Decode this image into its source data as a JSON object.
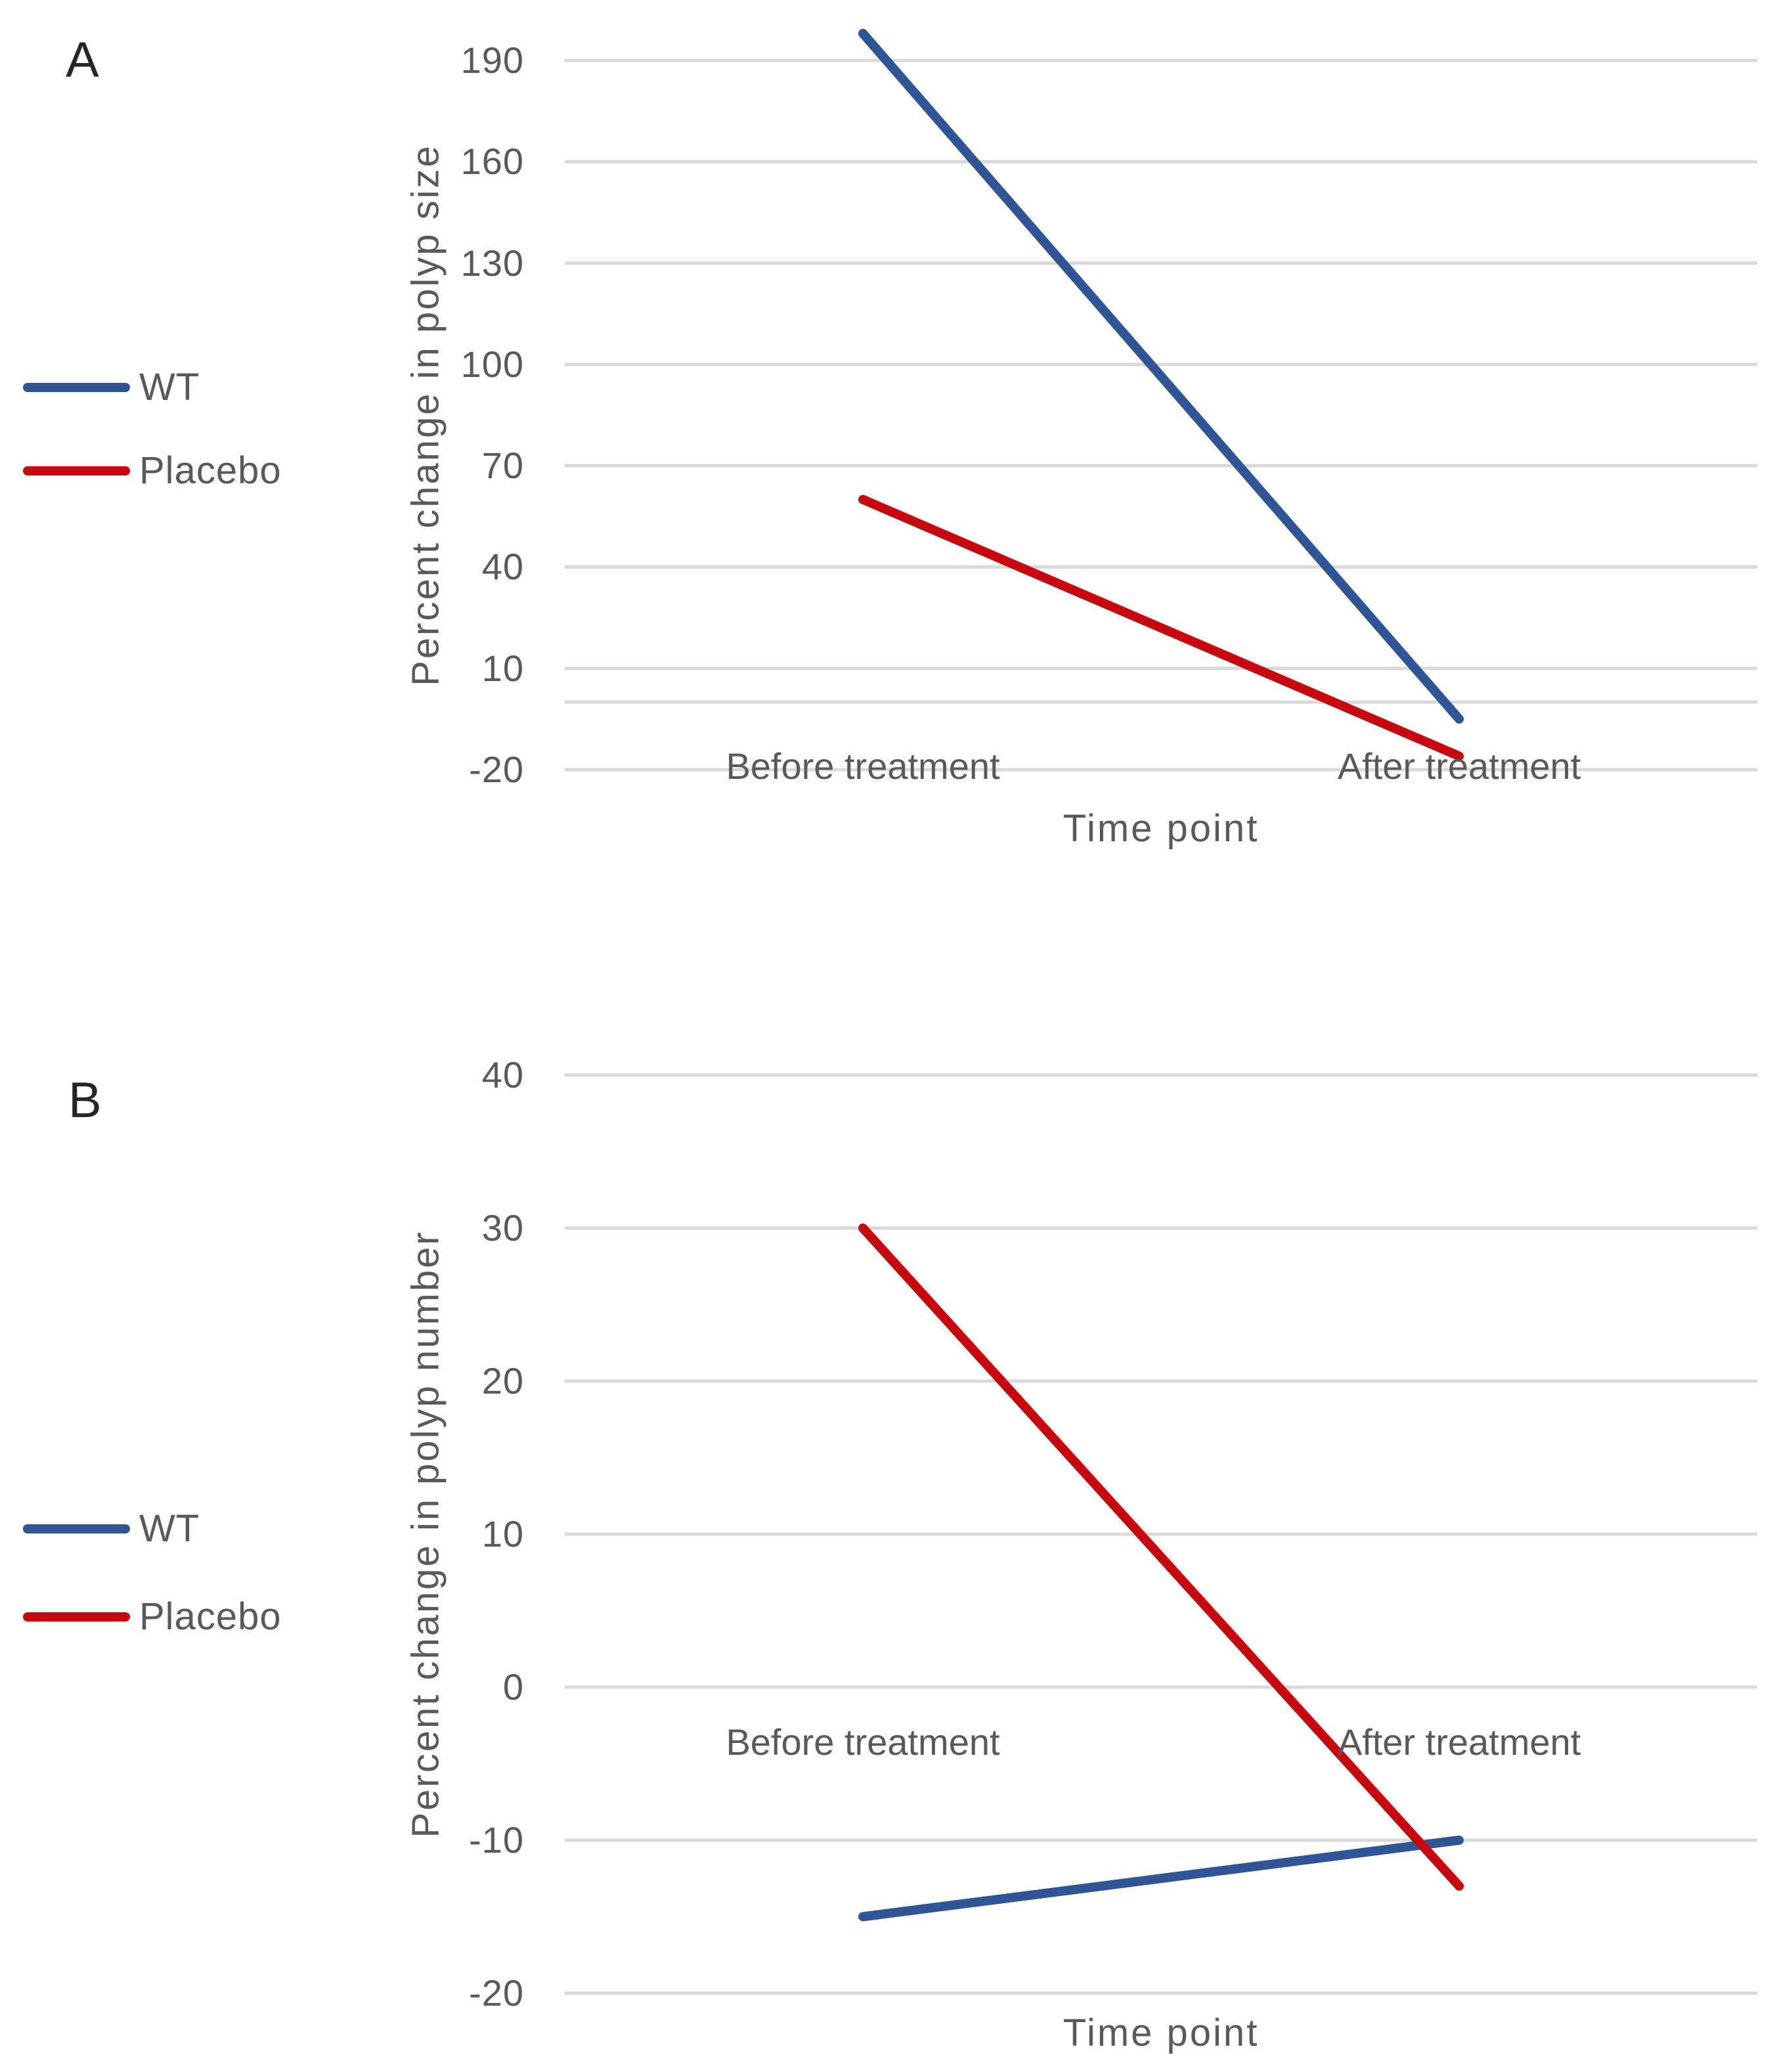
{
  "colors": {
    "wt": "#2F5597",
    "placebo": "#C7070D",
    "gridline": "#D9D9D9",
    "axis_text": "#595959",
    "panel_label_text": "#262626"
  },
  "chart_data": [
    {
      "type": "line",
      "panel_label": "A",
      "y_axis_title": "Percent change in polyp size",
      "x_axis_title": "Time point",
      "categories": [
        "Before treatment",
        "After treatment"
      ],
      "series": [
        {
          "name": "WT",
          "color": "wt",
          "values": [
            198,
            -5
          ]
        },
        {
          "name": "Placebo",
          "color": "placebo",
          "values": [
            60,
            -16
          ]
        }
      ],
      "yticks": [
        190,
        160,
        130,
        100,
        70,
        40,
        10,
        -20
      ],
      "ylim": [
        -20,
        190
      ],
      "grid": true,
      "axis_line_value": 0,
      "legend_position": "left"
    },
    {
      "type": "line",
      "panel_label": "B",
      "y_axis_title": "Percent change in polyp number",
      "x_axis_title": "Time point",
      "categories": [
        "Before treatment",
        "After treatment"
      ],
      "series": [
        {
          "name": "WT",
          "color": "wt",
          "values": [
            -15,
            -10
          ]
        },
        {
          "name": "Placebo",
          "color": "placebo",
          "values": [
            30,
            -13
          ]
        }
      ],
      "yticks": [
        40,
        30,
        20,
        10,
        0,
        -10,
        -20
      ],
      "ylim": [
        -20,
        40
      ],
      "grid": true,
      "axis_line_value": 0,
      "legend_position": "left"
    }
  ]
}
